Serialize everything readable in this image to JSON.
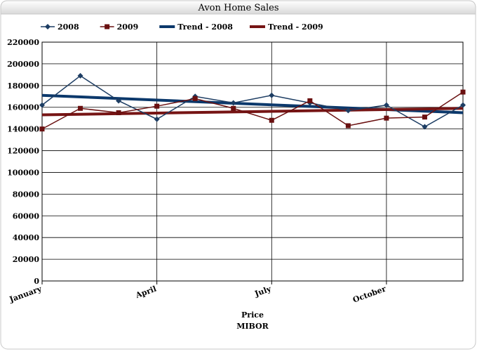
{
  "chart_data": {
    "type": "line",
    "title": "Avon Home Sales",
    "x_label": [
      "Price",
      "MIBOR"
    ],
    "categories": [
      "January",
      null,
      null,
      "April",
      null,
      null,
      "July",
      null,
      null,
      "October",
      null,
      null
    ],
    "series": [
      {
        "name": "2008",
        "color": "#1d3d63",
        "marker": "diamond",
        "values": [
          162000,
          189000,
          166000,
          149000,
          170000,
          164000,
          171000,
          164000,
          157000,
          162000,
          142000,
          162000
        ]
      },
      {
        "name": "2009",
        "color": "#6a1010",
        "marker": "square",
        "values": [
          140000,
          159000,
          155000,
          161000,
          168000,
          159000,
          148000,
          166000,
          143000,
          150000,
          151000,
          174000
        ]
      }
    ],
    "trendlines": [
      {
        "name": "Trend - 2008",
        "color": "#0b386b",
        "values": [
          171000,
          155000
        ]
      },
      {
        "name": "Trend - 2009",
        "color": "#761414",
        "values": [
          153000,
          159000
        ]
      }
    ],
    "ylim": [
      0,
      220000
    ],
    "yticks": [
      0,
      20000,
      40000,
      60000,
      80000,
      100000,
      120000,
      140000,
      160000,
      180000,
      200000,
      220000
    ],
    "grid": true,
    "legend": "top"
  }
}
